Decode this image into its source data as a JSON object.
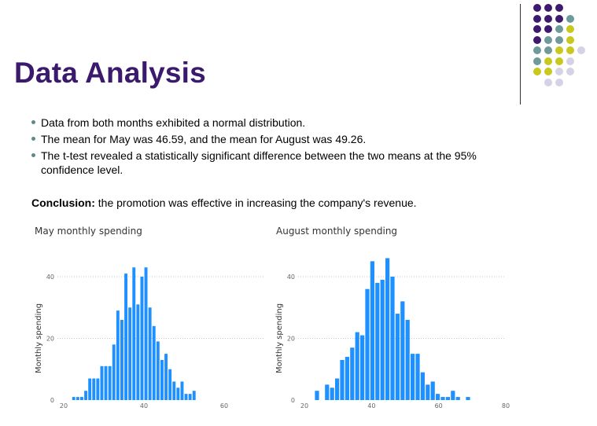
{
  "title": "Data Analysis",
  "bullets": [
    "Data from both months exhibited a normal distribution.",
    "The mean for May was 46.59, and the mean for August was 49.26.",
    "The t-test revealed a statistically significant difference between the two means at the 95% confidence level."
  ],
  "conclusion": {
    "label": "Conclusion:",
    "text": " the promotion was effective in increasing the company's revenue."
  },
  "decor": {
    "dot_colors": {
      "P": "#3d1a6e",
      "T": "#6f9a9a",
      "Y": "#c8c820",
      "L": "#d4d2e4"
    },
    "dot_rows": [
      "PPP",
      "PPPT",
      "PPTY",
      "PTTY",
      "TTYYL",
      "TYYL",
      "YYLL",
      "LL"
    ]
  },
  "chart_data": [
    {
      "type": "bar",
      "title": "May monthly spending",
      "ylabel": "Monthly spending",
      "xlim": [
        20,
        70
      ],
      "ylim": [
        0,
        40
      ],
      "xticks": [
        20,
        40,
        60
      ],
      "yticks": [
        0,
        20,
        40
      ],
      "bar_color": "#1e90ff",
      "bin_start": 22,
      "bin_width": 1,
      "values": [
        1,
        1,
        1,
        3,
        7,
        7,
        7,
        11,
        11,
        11,
        18,
        29,
        26,
        41,
        30,
        43,
        31,
        40,
        43,
        30,
        24,
        19,
        13,
        15,
        10,
        6,
        4,
        6,
        2,
        2,
        3
      ]
    },
    {
      "type": "bar",
      "title": "August monthly spending",
      "ylabel": "Monthly spending",
      "xlim": [
        20,
        80
      ],
      "ylim": [
        0,
        40
      ],
      "xticks": [
        20,
        40,
        60,
        80
      ],
      "yticks": [
        0,
        20,
        40
      ],
      "bar_color": "#1e90ff",
      "bin_start": 23,
      "bin_width": 1.5,
      "values": [
        3,
        0,
        5,
        4,
        7,
        13,
        14,
        17,
        22,
        21,
        36,
        45,
        38,
        39,
        46,
        40,
        28,
        32,
        26,
        15,
        15,
        9,
        5,
        6,
        2,
        1,
        1,
        3,
        1,
        0,
        1
      ]
    }
  ]
}
